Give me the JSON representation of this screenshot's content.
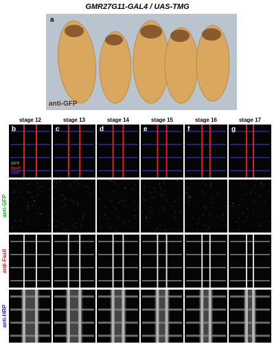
{
  "title": "GMR27G11-GAL4 / UAS-TMG",
  "panel_a": {
    "label": "a",
    "caption": "anti-GFP"
  },
  "stages": [
    {
      "label": "b",
      "stage": "stage 12"
    },
    {
      "label": "c",
      "stage": "stage 13"
    },
    {
      "label": "d",
      "stage": "stage 14"
    },
    {
      "label": "e",
      "stage": "stage 15"
    },
    {
      "label": "f",
      "stage": "stage 16"
    },
    {
      "label": "g",
      "stage": "stage 17"
    }
  ],
  "merge_legend": [
    "GFP",
    "FasII",
    "HRP"
  ],
  "rows": [
    "anti-GFP",
    "anti-FasII",
    "anti-HRP"
  ]
}
